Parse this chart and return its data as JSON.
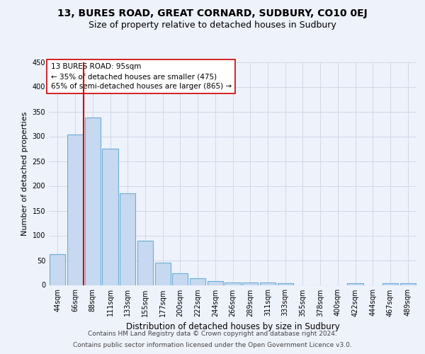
{
  "title": "13, BURES ROAD, GREAT CORNARD, SUDBURY, CO10 0EJ",
  "subtitle": "Size of property relative to detached houses in Sudbury",
  "xlabel": "Distribution of detached houses by size in Sudbury",
  "ylabel": "Number of detached properties",
  "bar_labels": [
    "44sqm",
    "66sqm",
    "88sqm",
    "111sqm",
    "133sqm",
    "155sqm",
    "177sqm",
    "200sqm",
    "222sqm",
    "244sqm",
    "266sqm",
    "289sqm",
    "311sqm",
    "333sqm",
    "355sqm",
    "378sqm",
    "400sqm",
    "422sqm",
    "444sqm",
    "467sqm",
    "489sqm"
  ],
  "bar_values": [
    62,
    303,
    338,
    275,
    185,
    90,
    45,
    23,
    13,
    8,
    5,
    5,
    5,
    4,
    0,
    0,
    0,
    3,
    0,
    4,
    3
  ],
  "bar_color": "#c6d9f0",
  "bar_edgecolor": "#6baed6",
  "vline_color": "#cc0000",
  "annotation_line1": "13 BURES ROAD: 95sqm",
  "annotation_line2": "← 35% of detached houses are smaller (475)",
  "annotation_line3": "65% of semi-detached houses are larger (865) →",
  "annotation_box_facecolor": "#ffffff",
  "annotation_box_edgecolor": "#cc0000",
  "ylim_max": 450,
  "yticks": [
    0,
    50,
    100,
    150,
    200,
    250,
    300,
    350,
    400,
    450
  ],
  "grid_color": "#d0d8e8",
  "background_color": "#eef2fb",
  "footer1": "Contains HM Land Registry data © Crown copyright and database right 2024.",
  "footer2": "Contains public sector information licensed under the Open Government Licence v3.0.",
  "title_fontsize": 10,
  "subtitle_fontsize": 9,
  "xlabel_fontsize": 8.5,
  "ylabel_fontsize": 8,
  "tick_fontsize": 7,
  "annotation_fontsize": 7.5,
  "footer_fontsize": 6.5
}
